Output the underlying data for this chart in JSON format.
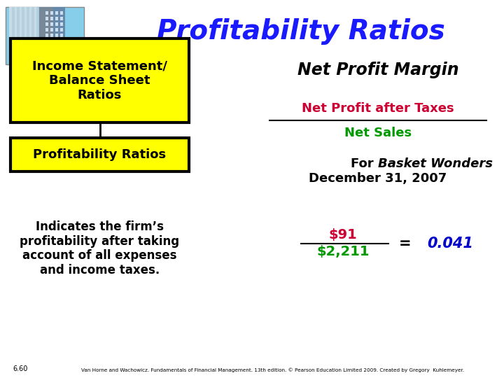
{
  "title": "Profitability Ratios",
  "title_color": "#1a1aff",
  "slide_bg": "#ffffff",
  "box1_text": "Income Statement/\nBalance Sheet\nRatios",
  "box2_text": "Profitability Ratios",
  "box_fill": "#ffff00",
  "box_edge": "#000000",
  "left_body_text": "Indicates the firm’s\nprofitability after taking\naccount of all expenses\nand income taxes.",
  "right_title": "Net Profit Margin",
  "fraction_numerator": "Net Profit after Taxes",
  "fraction_denominator": "Net Sales",
  "numerator_color": "#cc0033",
  "denominator_color": "#009900",
  "for_text": "For ",
  "basket_text": "Basket Wonders",
  "dec_text": "December 31, 2007",
  "val_num": "$91",
  "val_den": "$2,211",
  "val_num_color": "#cc0033",
  "val_den_color": "#009900",
  "result_text": "0.041",
  "result_color": "#0000cc",
  "footer_text": "Van Horne and Wachowicz. Fundamentals of Financial Management. 13th edition. © Pearson Education Limited 2009. Created by Gregory  Kuhlemeyer.",
  "slide_num": "6.60"
}
